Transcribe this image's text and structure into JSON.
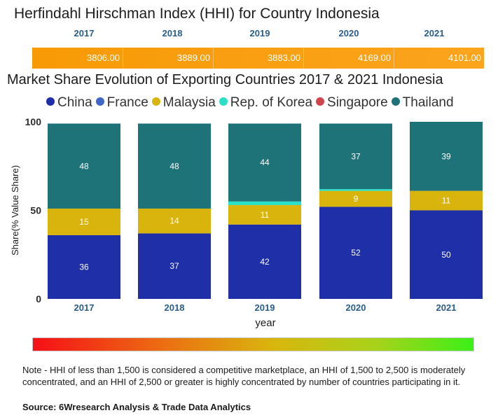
{
  "hhi": {
    "title": "Herfindahl Hirschman Index (HHI) for Country Indonesia",
    "years": [
      "2017",
      "2018",
      "2019",
      "2020",
      "2021"
    ],
    "values": [
      "3806.00",
      "3889.00",
      "3883.00",
      "4169.00",
      "4101.00"
    ],
    "bar_color": "#f89c0a"
  },
  "chart_data": {
    "type": "bar",
    "stacked": true,
    "title": "Market Share Evolution of Exporting Countries 2017 & 2021 Indonesia",
    "xlabel": "year",
    "ylabel": "Share(% Value Share)",
    "ylim": [
      0,
      100
    ],
    "yticks": [
      0,
      50,
      100
    ],
    "categories": [
      "2017",
      "2018",
      "2019",
      "2020",
      "2021"
    ],
    "legend_position": "top",
    "series": [
      {
        "name": "China",
        "color": "#1e2fa8",
        "values": [
          36,
          37,
          42,
          52,
          50
        ],
        "labels": [
          "36",
          "37",
          "42",
          "52",
          "50"
        ]
      },
      {
        "name": "France",
        "color": "#3f67c5",
        "values": [
          0,
          0,
          0,
          0,
          0
        ],
        "labels": [
          "",
          "",
          "",
          "",
          ""
        ]
      },
      {
        "name": "Malaysia",
        "color": "#d8b40c",
        "values": [
          15,
          14,
          11,
          9,
          11
        ],
        "labels": [
          "15",
          "14",
          "11",
          "9",
          "11"
        ]
      },
      {
        "name": "Rep. of Korea",
        "color": "#2ae0c6",
        "values": [
          0,
          0,
          2,
          1,
          0
        ],
        "labels": [
          "",
          "",
          "",
          "",
          ""
        ]
      },
      {
        "name": "Singapore",
        "color": "#d0454d",
        "values": [
          0,
          0,
          0,
          0,
          0
        ],
        "labels": [
          "",
          "",
          "",
          "",
          ""
        ]
      },
      {
        "name": "Thailand",
        "color": "#1e7379",
        "values": [
          48,
          48,
          44,
          37,
          39
        ],
        "labels": [
          "48",
          "48",
          "44",
          "37",
          "39"
        ]
      }
    ]
  },
  "note": "Note - HHI of less than 1,500 is considered a competitive marketplace, an HHI of 1,500 to 2,500 is moderately concentrated, and an HHI of 2,500 or greater is highly concentrated by number of countries participating in it.",
  "source": "Source: 6Wresearch Analysis & Trade Data Analytics"
}
